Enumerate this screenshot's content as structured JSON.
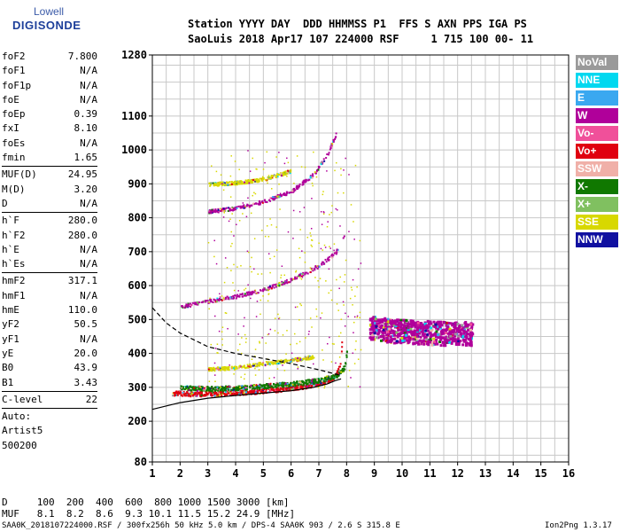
{
  "logo": {
    "line1": "Lowell",
    "line2": "DIGISONDE"
  },
  "header": {
    "row1": "Station YYYY DAY  DDD HHMMSS P1  FFS S AXN PPS IGA PS",
    "row2": "SaoLuis 2018 Apr17 107 224000 RSF     1 715 100 00- 11"
  },
  "params": [
    {
      "k": "foF2",
      "v": "7.800"
    },
    {
      "k": "foF1",
      "v": "N/A"
    },
    {
      "k": "foF1p",
      "v": "N/A"
    },
    {
      "k": "foE",
      "v": "N/A"
    },
    {
      "k": "foEp",
      "v": "0.39"
    },
    {
      "k": "fxI",
      "v": "8.10"
    },
    {
      "k": "foEs",
      "v": "N/A"
    },
    {
      "k": "fmin",
      "v": "1.65"
    },
    {
      "sep": true
    },
    {
      "k": "MUF(D)",
      "v": "24.95"
    },
    {
      "k": "M(D)",
      "v": "3.20"
    },
    {
      "k": "D",
      "v": "N/A"
    },
    {
      "sep": true
    },
    {
      "k": "h`F",
      "v": "280.0"
    },
    {
      "k": "h`F2",
      "v": "280.0"
    },
    {
      "k": "h`E",
      "v": "N/A"
    },
    {
      "k": "h`Es",
      "v": "N/A"
    },
    {
      "sep": true
    },
    {
      "k": "hmF2",
      "v": "317.1"
    },
    {
      "k": "hmF1",
      "v": "N/A"
    },
    {
      "k": "hmE",
      "v": "110.0"
    },
    {
      "k": "yF2",
      "v": "50.5"
    },
    {
      "k": "yF1",
      "v": "N/A"
    },
    {
      "k": "yE",
      "v": "20.0"
    },
    {
      "k": "B0",
      "v": "43.9"
    },
    {
      "k": "B1",
      "v": "3.43"
    },
    {
      "sep": true
    },
    {
      "k": "C-level",
      "v": "22"
    },
    {
      "sep": true
    },
    {
      "k": "Auto:",
      "v": ""
    },
    {
      "k": "Artist5",
      "v": ""
    },
    {
      "k": "500200",
      "v": ""
    }
  ],
  "legend": [
    {
      "label": "NoVal",
      "color": "#9a9a9a"
    },
    {
      "label": "NNE",
      "color": "#00d8f0"
    },
    {
      "label": "E",
      "color": "#3aa8f0"
    },
    {
      "label": "W",
      "color": "#b0009a"
    },
    {
      "label": "Vo-",
      "color": "#f0509a"
    },
    {
      "label": "Vo+",
      "color": "#e00010"
    },
    {
      "label": "SSW",
      "color": "#f0b0a8"
    },
    {
      "label": "X-",
      "color": "#107800"
    },
    {
      "label": "X+",
      "color": "#80c060"
    },
    {
      "label": "SSE",
      "color": "#d8d800"
    },
    {
      "label": "NNW",
      "color": "#1010a0"
    }
  ],
  "footer": {
    "d_row": "D     100  200  400  600  800 1000 1500 3000 [km]",
    "muf_row": "MUF   8.1  8.2  8.6  9.3 10.1 11.5 15.2 24.9 [MHz]",
    "file_row": "SAA0K_2018107224000.RSF / 300fx256h 50 kHz 5.0 km / DPS-4 SAA0K 903 / 2.6 S 315.8 E",
    "version": "Ion2Png 1.3.17"
  },
  "chart_data": {
    "type": "scatter",
    "xlim": [
      1,
      16
    ],
    "ylim": [
      80,
      1280
    ],
    "x_ticks": [
      1,
      2,
      3,
      4,
      5,
      6,
      7,
      8,
      9,
      10,
      11,
      12,
      13,
      14,
      15,
      16
    ],
    "y_ticks": [
      80,
      200,
      300,
      400,
      500,
      600,
      700,
      800,
      900,
      1000,
      1100,
      1280
    ],
    "grid": true,
    "grid_x_step": 0.5,
    "grid_y_step": 50,
    "traces": [
      {
        "name": "F2 O-trace",
        "color": "#e00010",
        "points": [
          [
            1.7,
            285
          ],
          [
            2.5,
            282
          ],
          [
            3.5,
            284
          ],
          [
            4.5,
            288
          ],
          [
            5.5,
            295
          ],
          [
            6.5,
            305
          ],
          [
            7.2,
            318
          ],
          [
            7.6,
            335
          ],
          [
            7.75,
            370
          ],
          [
            7.8,
            410
          ],
          [
            7.82,
            470
          ]
        ]
      },
      {
        "name": "F2 X-trace",
        "color": "#107800",
        "points": [
          [
            2.0,
            300
          ],
          [
            3.0,
            298
          ],
          [
            4.0,
            300
          ],
          [
            5.0,
            305
          ],
          [
            6.0,
            312
          ],
          [
            7.0,
            322
          ],
          [
            7.6,
            336
          ],
          [
            7.9,
            360
          ],
          [
            8.0,
            410
          ]
        ]
      },
      {
        "name": "F2 second hop",
        "color": "#b0009a",
        "points": [
          [
            2.0,
            540
          ],
          [
            3.0,
            556
          ],
          [
            4.0,
            570
          ],
          [
            5.0,
            590
          ],
          [
            6.0,
            620
          ],
          [
            7.0,
            660
          ],
          [
            7.6,
            700
          ],
          [
            7.9,
            750
          ]
        ]
      },
      {
        "name": "F2 third hop",
        "color": "#b0009a",
        "points": [
          [
            3.0,
            820
          ],
          [
            4.0,
            830
          ],
          [
            5.0,
            850
          ],
          [
            6.0,
            880
          ],
          [
            6.8,
            930
          ],
          [
            7.3,
            990
          ],
          [
            7.6,
            1050
          ]
        ]
      },
      {
        "name": "F2 upper echo",
        "color": "#d8d800",
        "points": [
          [
            3.0,
            900
          ],
          [
            4.0,
            905
          ],
          [
            5.0,
            915
          ],
          [
            6.0,
            940
          ]
        ]
      },
      {
        "name": "Spread F",
        "color": "#b0009a",
        "points": [
          [
            8.8,
            480
          ],
          [
            9.5,
            470
          ],
          [
            10.5,
            465
          ],
          [
            11.5,
            462
          ],
          [
            12.0,
            460
          ],
          [
            12.5,
            462
          ]
        ]
      },
      {
        "name": "Oblique echo",
        "color": "#d8d800",
        "points": [
          [
            3.0,
            355
          ],
          [
            4.0,
            360
          ],
          [
            5.0,
            372
          ],
          [
            6.0,
            382
          ],
          [
            6.8,
            392
          ]
        ]
      }
    ],
    "profile_solid": [
      [
        1,
        235
      ],
      [
        2,
        255
      ],
      [
        3,
        268
      ],
      [
        4,
        276
      ],
      [
        5,
        283
      ],
      [
        6,
        290
      ],
      [
        6.8,
        300
      ],
      [
        7.3,
        310
      ],
      [
        7.6,
        320
      ],
      [
        7.8,
        325
      ]
    ],
    "profile_dashed": [
      [
        1,
        535
      ],
      [
        1.5,
        490
      ],
      [
        2,
        460
      ],
      [
        3,
        420
      ],
      [
        4,
        400
      ],
      [
        5,
        385
      ],
      [
        6,
        370
      ],
      [
        7,
        352
      ],
      [
        7.8,
        335
      ]
    ]
  }
}
